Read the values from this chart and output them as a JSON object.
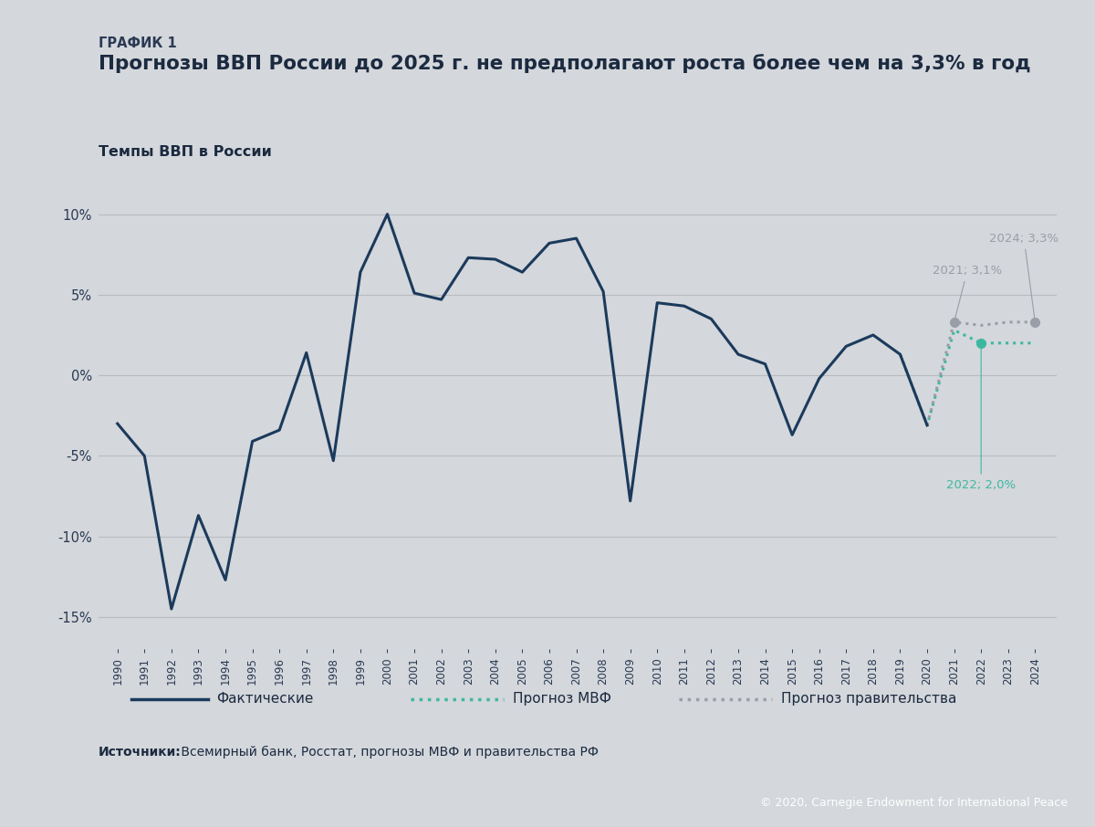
{
  "bg_color": "#d4d7db",
  "footer_color": "#1b2a40",
  "title_label": "ГРАФИК 1",
  "title_main": "Прогнозы ВВП России до 2025 г. не предполагают роста более чем на 3,3% в год",
  "subtitle": "Темпы ВВП в России",
  "source_bold": "Источники:",
  "source_text": " Всемирный банк, Росстат, прогнозы МВФ и правительства РФ",
  "footer_text": "© 2020, Carnegie Endowment for International Peace",
  "actual_years": [
    1990,
    1991,
    1992,
    1993,
    1994,
    1995,
    1996,
    1997,
    1998,
    1999,
    2000,
    2001,
    2002,
    2003,
    2004,
    2005,
    2006,
    2007,
    2008,
    2009,
    2010,
    2011,
    2012,
    2013,
    2014,
    2015,
    2016,
    2017,
    2018,
    2019,
    2020
  ],
  "actual_values": [
    -3.0,
    -5.0,
    -14.5,
    -8.7,
    -12.7,
    -4.1,
    -3.4,
    1.4,
    -5.3,
    6.4,
    10.0,
    5.1,
    4.7,
    7.3,
    7.2,
    6.4,
    8.2,
    8.5,
    5.2,
    -7.8,
    4.5,
    4.3,
    3.5,
    1.3,
    0.7,
    -3.7,
    -0.2,
    1.8,
    2.5,
    1.3,
    -3.1
  ],
  "imf_years": [
    2019,
    2020,
    2021,
    2022,
    2023,
    2024
  ],
  "imf_values": [
    1.3,
    -3.1,
    2.8,
    2.0,
    2.0,
    2.0
  ],
  "gov_years": [
    2020,
    2021,
    2022,
    2023,
    2024
  ],
  "gov_values": [
    -3.1,
    3.3,
    3.1,
    3.3,
    3.3
  ],
  "actual_color": "#1b3a5c",
  "imf_color": "#3db8a0",
  "gov_color": "#9a9ea6",
  "annotation_text_color": "#1b3a5c",
  "ylim": [
    -17,
    12
  ],
  "yticks": [
    -15,
    -10,
    -5,
    0,
    5,
    10
  ],
  "legend_actual": "Фактические",
  "legend_imf": "Прогноз МВФ",
  "legend_gov": "Прогноз правительства",
  "gov_dot_years": [
    2021,
    2024
  ],
  "gov_dot_values": [
    3.3,
    3.3
  ],
  "imf_dot_years": [
    2022
  ],
  "imf_dot_values": [
    2.0
  ]
}
